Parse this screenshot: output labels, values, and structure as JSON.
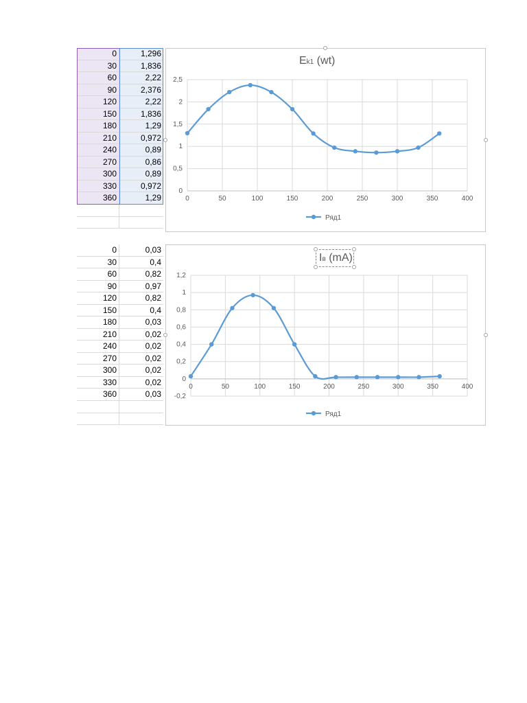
{
  "sheets": [
    {
      "rows": [
        [
          "0",
          "1,296"
        ],
        [
          "30",
          "1,836"
        ],
        [
          "60",
          "2,22"
        ],
        [
          "90",
          "2,376"
        ],
        [
          "120",
          "2,22"
        ],
        [
          "150",
          "1,836"
        ],
        [
          "180",
          "1,29"
        ],
        [
          "210",
          "0,972"
        ],
        [
          "240",
          "0,89"
        ],
        [
          "270",
          "0,86"
        ],
        [
          "300",
          "0,89"
        ],
        [
          "330",
          "0,972"
        ],
        [
          "360",
          "1,29"
        ]
      ]
    },
    {
      "rows": [
        [
          "0",
          "0,03"
        ],
        [
          "30",
          "0,4"
        ],
        [
          "60",
          "0,82"
        ],
        [
          "90",
          "0,97"
        ],
        [
          "120",
          "0,82"
        ],
        [
          "150",
          "0,4"
        ],
        [
          "180",
          "0,03"
        ],
        [
          "210",
          "0,02"
        ],
        [
          "240",
          "0,02"
        ],
        [
          "270",
          "0,02"
        ],
        [
          "300",
          "0,02"
        ],
        [
          "330",
          "0,02"
        ],
        [
          "360",
          "0,03"
        ]
      ]
    }
  ],
  "chart_data": [
    {
      "type": "line",
      "title_main": "E",
      "title_sub": "k1",
      "title_rest": " (wt)",
      "x": [
        0,
        30,
        60,
        90,
        120,
        150,
        180,
        210,
        240,
        270,
        300,
        330,
        360
      ],
      "series": [
        {
          "name": "Ряд1",
          "values": [
            1.296,
            1.836,
            2.22,
            2.376,
            2.22,
            1.836,
            1.29,
            0.972,
            0.89,
            0.86,
            0.89,
            0.972,
            1.29
          ]
        }
      ],
      "xlim": [
        0,
        400
      ],
      "xticks": [
        0,
        50,
        100,
        150,
        200,
        250,
        300,
        350,
        400
      ],
      "ylim": [
        0,
        2.5
      ],
      "yticks": [
        "0",
        "0,5",
        "1",
        "1,5",
        "2",
        "2,5"
      ],
      "ytick_values": [
        0,
        0.5,
        1,
        1.5,
        2,
        2.5
      ],
      "grid": true,
      "legend": "bottom",
      "color": "#5b9bd5"
    },
    {
      "type": "line",
      "title_main": "I",
      "title_sub": "в",
      "title_rest": " (mA)",
      "x": [
        0,
        30,
        60,
        90,
        120,
        150,
        180,
        210,
        240,
        270,
        300,
        330,
        360
      ],
      "series": [
        {
          "name": "Ряд1",
          "values": [
            0.03,
            0.4,
            0.82,
            0.97,
            0.82,
            0.4,
            0.03,
            0.02,
            0.02,
            0.02,
            0.02,
            0.02,
            0.03
          ]
        }
      ],
      "xlim": [
        0,
        400
      ],
      "xticks": [
        0,
        50,
        100,
        150,
        200,
        250,
        300,
        350,
        400
      ],
      "ylim": [
        -0.2,
        1.2
      ],
      "yticks": [
        "-0,2",
        "0",
        "0,2",
        "0,4",
        "0,6",
        "0,8",
        "1",
        "1,2"
      ],
      "ytick_values": [
        -0.2,
        0,
        0.2,
        0.4,
        0.6,
        0.8,
        1,
        1.2
      ],
      "grid": true,
      "legend": "bottom",
      "color": "#5b9bd5"
    }
  ]
}
